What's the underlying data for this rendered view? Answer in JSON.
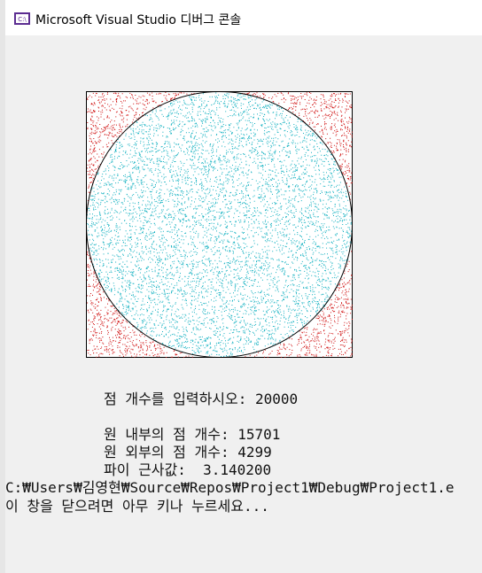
{
  "window": {
    "title": "Microsoft Visual Studio 디버그 콘솔"
  },
  "console": {
    "prompt": "점 개수를 입력하시오: 20000",
    "results": [
      "원 내부의 점 개수: 15701",
      "원 외부의 점 개수: 4299",
      "파이 근사값:  3.140200"
    ],
    "path": "C:₩Users₩김영현₩Source₩Repos₩Project1₩Debug₩Project1.e",
    "exit": "이 창을 닫으려면 아무 키나 누르세요..."
  }
}
